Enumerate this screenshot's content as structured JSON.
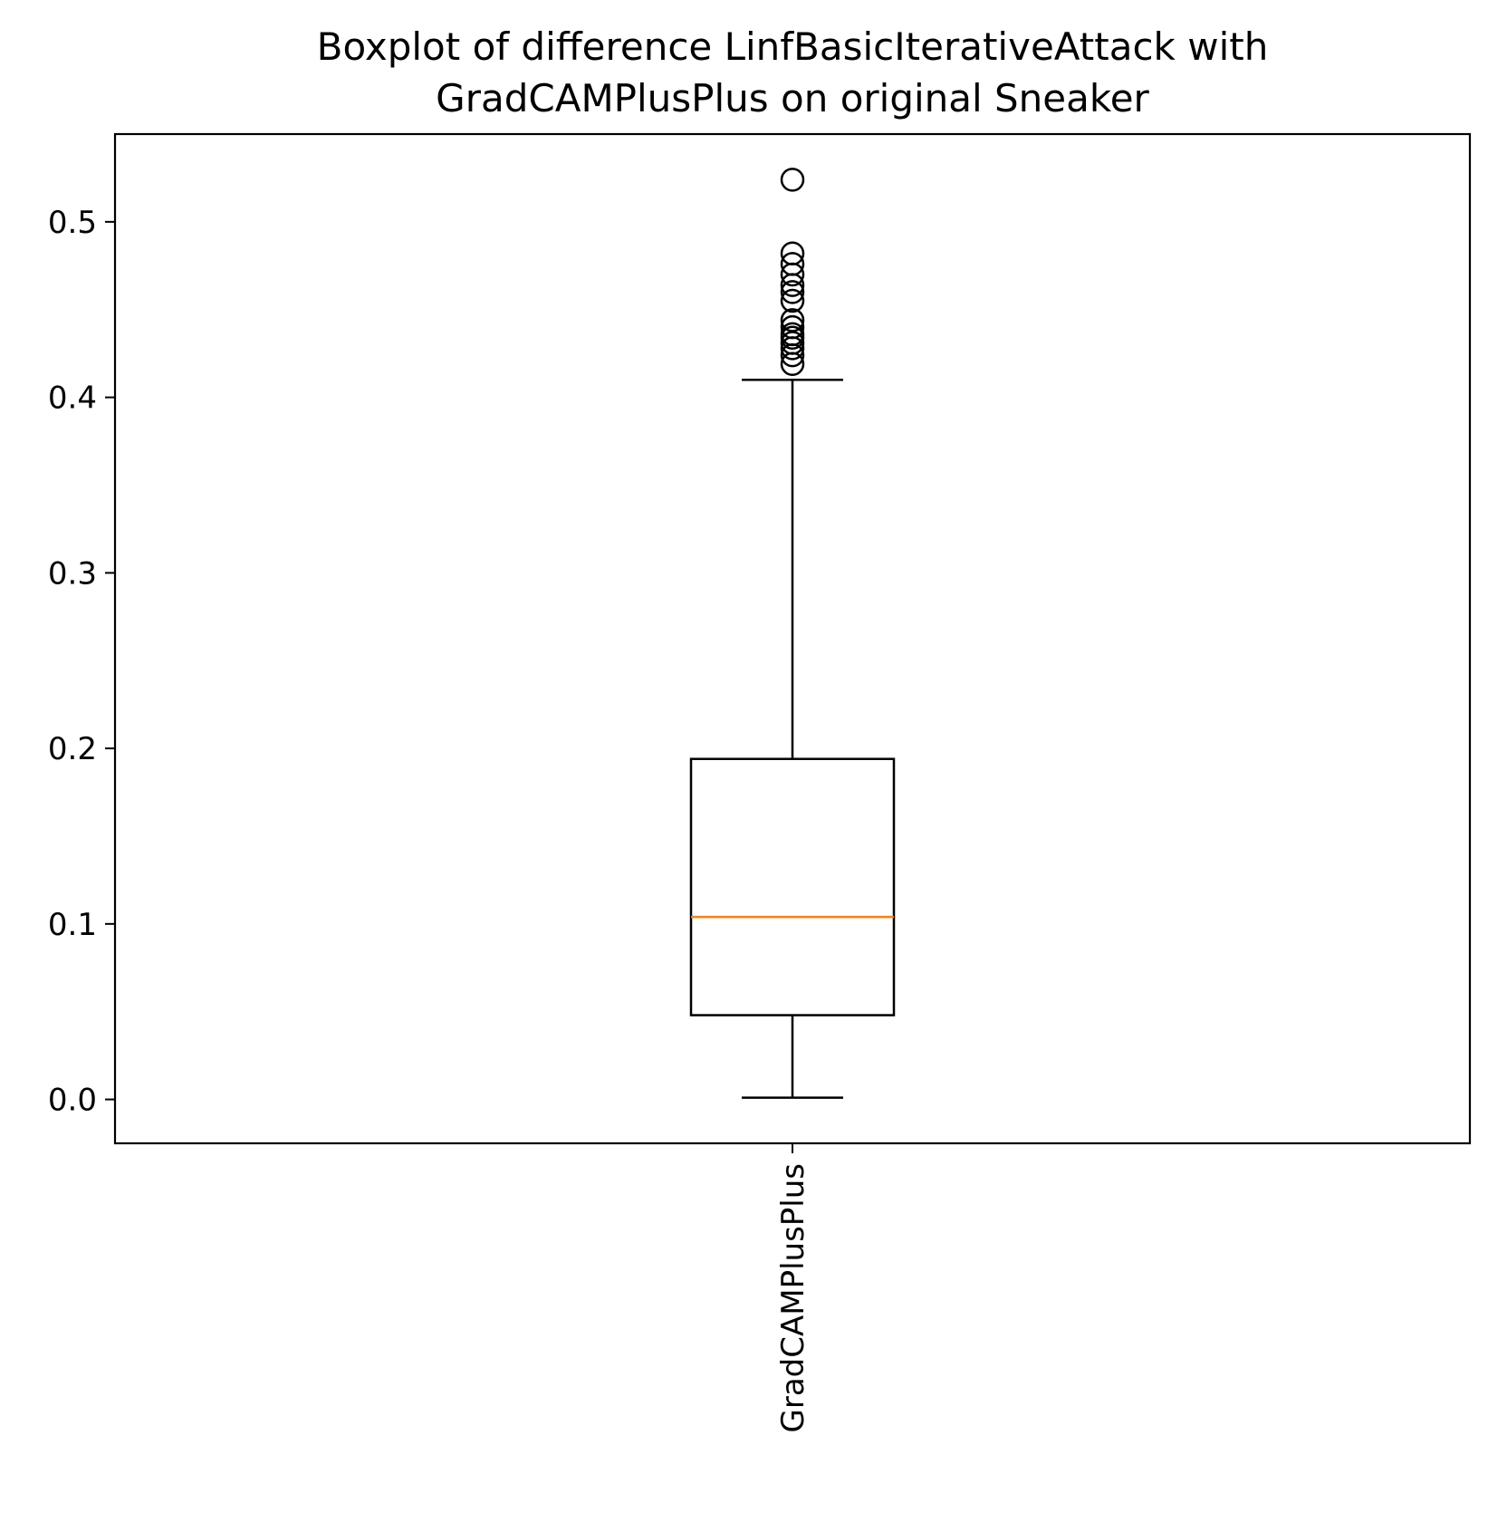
{
  "chart_data": {
    "type": "boxplot",
    "title": [
      "Boxplot of difference LinfBasicIterativeAttack with",
      "GradCAMPlusPlus on original Sneaker"
    ],
    "xlabel": "",
    "ylabel": "",
    "categories": [
      "GradCAMPlusPlus"
    ],
    "ylim": [
      -0.025,
      0.55
    ],
    "yticks": [
      0.0,
      0.1,
      0.2,
      0.3,
      0.4,
      0.5
    ],
    "ytick_labels": [
      "0.0",
      "0.1",
      "0.2",
      "0.3",
      "0.4",
      "0.5"
    ],
    "grid": false,
    "series": [
      {
        "whisker_low": 0.001,
        "q1": 0.048,
        "median": 0.104,
        "q3": 0.194,
        "whisker_high": 0.41,
        "outliers": [
          0.419,
          0.424,
          0.428,
          0.431,
          0.434,
          0.436,
          0.44,
          0.444,
          0.455,
          0.46,
          0.464,
          0.47,
          0.476,
          0.482,
          0.524
        ]
      }
    ],
    "colors": {
      "box": "#000000",
      "median": "#ff7f0e",
      "outlier_edge": "#000000"
    }
  }
}
